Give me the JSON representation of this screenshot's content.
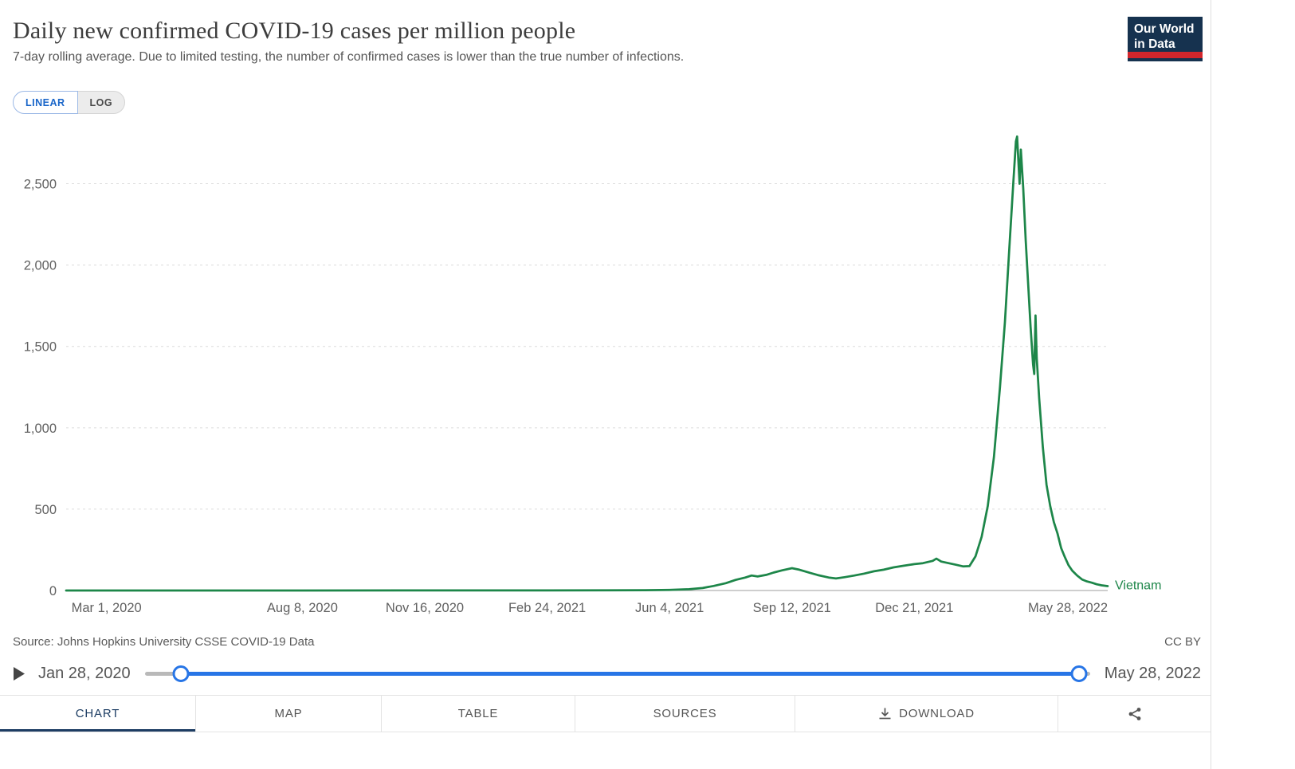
{
  "header": {
    "title": "Daily new confirmed COVID-19 cases per million people",
    "subtitle": "7-day rolling average. Due to limited testing, the number of confirmed cases is lower than the true number of infections.",
    "logo": {
      "line1": "Our World",
      "line2": "in Data",
      "bg_color": "#16324f",
      "accent_color": "#d2262c"
    }
  },
  "toggle": {
    "linear_label": "LINEAR",
    "log_label": "LOG",
    "active": "LINEAR",
    "active_color": "#1a66c9"
  },
  "chart_data": {
    "type": "line",
    "title": "Daily new confirmed COVID-19 cases per million people",
    "xlabel": "",
    "ylabel": "",
    "grid": "dashed-horizontal",
    "legend_position": "end-of-line-label",
    "x_domain": [
      "2020-01-28",
      "2022-05-28"
    ],
    "ylim": [
      0,
      2870
    ],
    "y_ticks": [
      {
        "value": 0,
        "label": "0"
      },
      {
        "value": 500,
        "label": "500"
      },
      {
        "value": 1000,
        "label": "1,000"
      },
      {
        "value": 1500,
        "label": "1,500"
      },
      {
        "value": 2000,
        "label": "2,000"
      },
      {
        "value": 2500,
        "label": "2,500"
      }
    ],
    "x_ticks": [
      {
        "date": "2020-03-01",
        "label": "Mar 1, 2020"
      },
      {
        "date": "2020-08-08",
        "label": "Aug 8, 2020"
      },
      {
        "date": "2020-11-16",
        "label": "Nov 16, 2020"
      },
      {
        "date": "2021-02-24",
        "label": "Feb 24, 2021"
      },
      {
        "date": "2021-06-04",
        "label": "Jun 4, 2021"
      },
      {
        "date": "2021-09-12",
        "label": "Sep 12, 2021"
      },
      {
        "date": "2021-12-21",
        "label": "Dec 21, 2021"
      },
      {
        "date": "2022-05-28",
        "label": "May 28, 2022"
      }
    ],
    "series": [
      {
        "name": "Vietnam",
        "color": "#1d8649",
        "points": [
          [
            "2020-01-28",
            0
          ],
          [
            "2020-04-01",
            0.1
          ],
          [
            "2020-08-08",
            0.2
          ],
          [
            "2020-11-16",
            0.3
          ],
          [
            "2021-02-24",
            0.5
          ],
          [
            "2021-04-15",
            1
          ],
          [
            "2021-05-15",
            2
          ],
          [
            "2021-06-04",
            4
          ],
          [
            "2021-06-20",
            8
          ],
          [
            "2021-07-01",
            15
          ],
          [
            "2021-07-10",
            28
          ],
          [
            "2021-07-20",
            45
          ],
          [
            "2021-07-28",
            65
          ],
          [
            "2021-08-05",
            80
          ],
          [
            "2021-08-10",
            92
          ],
          [
            "2021-08-15",
            86
          ],
          [
            "2021-08-22",
            96
          ],
          [
            "2021-08-28",
            110
          ],
          [
            "2021-09-04",
            124
          ],
          [
            "2021-09-12",
            137
          ],
          [
            "2021-09-18",
            128
          ],
          [
            "2021-09-25",
            112
          ],
          [
            "2021-10-03",
            95
          ],
          [
            "2021-10-12",
            80
          ],
          [
            "2021-10-18",
            74
          ],
          [
            "2021-10-25",
            82
          ],
          [
            "2021-11-02",
            92
          ],
          [
            "2021-11-10",
            104
          ],
          [
            "2021-11-18",
            118
          ],
          [
            "2021-11-26",
            128
          ],
          [
            "2021-12-04",
            142
          ],
          [
            "2021-12-12",
            152
          ],
          [
            "2021-12-21",
            162
          ],
          [
            "2021-12-28",
            168
          ],
          [
            "2022-01-05",
            182
          ],
          [
            "2022-01-08",
            196
          ],
          [
            "2022-01-12",
            178
          ],
          [
            "2022-01-18",
            168
          ],
          [
            "2022-01-24",
            158
          ],
          [
            "2022-01-30",
            148
          ],
          [
            "2022-02-04",
            150
          ],
          [
            "2022-02-09",
            210
          ],
          [
            "2022-02-14",
            330
          ],
          [
            "2022-02-19",
            520
          ],
          [
            "2022-02-24",
            820
          ],
          [
            "2022-03-01",
            1250
          ],
          [
            "2022-03-05",
            1650
          ],
          [
            "2022-03-09",
            2150
          ],
          [
            "2022-03-12",
            2520
          ],
          [
            "2022-03-14",
            2760
          ],
          [
            "2022-03-15",
            2790
          ],
          [
            "2022-03-16",
            2640
          ],
          [
            "2022-03-17",
            2500
          ],
          [
            "2022-03-18",
            2710
          ],
          [
            "2022-03-20",
            2470
          ],
          [
            "2022-03-22",
            2150
          ],
          [
            "2022-03-24",
            1880
          ],
          [
            "2022-03-26",
            1620
          ],
          [
            "2022-03-28",
            1390
          ],
          [
            "2022-03-29",
            1330
          ],
          [
            "2022-03-30",
            1690
          ],
          [
            "2022-03-31",
            1430
          ],
          [
            "2022-04-02",
            1180
          ],
          [
            "2022-04-05",
            880
          ],
          [
            "2022-04-08",
            650
          ],
          [
            "2022-04-11",
            520
          ],
          [
            "2022-04-14",
            420
          ],
          [
            "2022-04-17",
            350
          ],
          [
            "2022-04-20",
            260
          ],
          [
            "2022-04-23",
            205
          ],
          [
            "2022-04-26",
            155
          ],
          [
            "2022-04-29",
            122
          ],
          [
            "2022-05-03",
            92
          ],
          [
            "2022-05-07",
            68
          ],
          [
            "2022-05-11",
            56
          ],
          [
            "2022-05-15",
            48
          ],
          [
            "2022-05-19",
            38
          ],
          [
            "2022-05-23",
            32
          ],
          [
            "2022-05-28",
            27
          ]
        ]
      }
    ]
  },
  "footer": {
    "source": "Source: Johns Hopkins University CSSE COVID-19 Data",
    "license": "CC BY"
  },
  "timeline": {
    "play_icon": "play-icon",
    "start_date": "Jan 28, 2020",
    "end_date": "May 28, 2022",
    "track_color": "#b9b9b9",
    "range_color": "#2775e6"
  },
  "tabs": {
    "active_color": "#1d3d63",
    "items": [
      {
        "label": "CHART",
        "active": true
      },
      {
        "label": "MAP",
        "active": false
      },
      {
        "label": "TABLE",
        "active": false
      },
      {
        "label": "SOURCES",
        "active": false
      },
      {
        "label": "DOWNLOAD",
        "active": false,
        "icon": "download-icon"
      },
      {
        "label": "",
        "active": false,
        "icon": "share-icon"
      }
    ]
  }
}
